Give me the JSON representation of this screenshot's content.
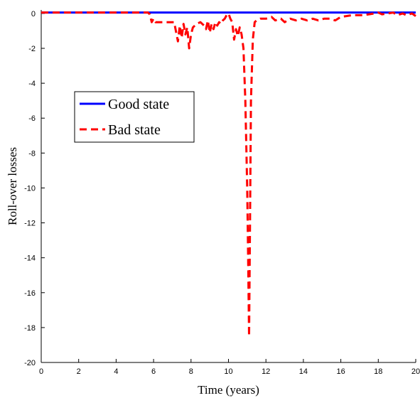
{
  "chart_data": {
    "type": "line",
    "title": "",
    "xlabel": "Time (years)",
    "ylabel": "Roll-over losses",
    "xlim": [
      0,
      20
    ],
    "ylim": [
      -20,
      0.2
    ],
    "xticks": [
      0,
      2,
      4,
      6,
      8,
      10,
      12,
      14,
      16,
      18,
      20
    ],
    "yticks": [
      0,
      -2,
      -4,
      -6,
      -8,
      -10,
      -12,
      -14,
      -16,
      -18,
      -20
    ],
    "grid": false,
    "legend_position": "upper-left",
    "series": [
      {
        "name": "Good state",
        "color": "#0000ff",
        "style": "solid",
        "x": [
          0,
          20
        ],
        "y": [
          0.05,
          0.05
        ]
      },
      {
        "name": "Bad state",
        "color": "#ff0000",
        "style": "dashed",
        "x": [
          0,
          5.7,
          5.8,
          5.9,
          6.0,
          6.1,
          6.3,
          6.6,
          6.9,
          7.1,
          7.3,
          7.4,
          7.5,
          7.6,
          7.7,
          7.8,
          7.9,
          8.0,
          8.1,
          8.3,
          8.5,
          8.7,
          8.8,
          8.9,
          9.0,
          9.1,
          9.2,
          9.3,
          9.4,
          9.5,
          9.6,
          9.7,
          9.8,
          9.9,
          10.0,
          10.1,
          10.2,
          10.3,
          10.4,
          10.5,
          10.6,
          10.7,
          10.8,
          10.9,
          11.0,
          11.05,
          11.1,
          11.15,
          11.2,
          11.3,
          11.4,
          11.5,
          11.7,
          12.0,
          12.3,
          12.5,
          12.8,
          13.0,
          13.3,
          13.6,
          13.9,
          14.2,
          14.5,
          14.8,
          15.1,
          15.4,
          15.7,
          16.0,
          16.3,
          16.6,
          16.9,
          17.2,
          17.5,
          17.8,
          18.0,
          18.2,
          18.5,
          18.8,
          19.0,
          19.3,
          19.5,
          19.8,
          20.0
        ],
        "y": [
          0.05,
          0.05,
          -0.05,
          -0.5,
          -0.3,
          -0.5,
          -0.5,
          -0.5,
          -0.5,
          -0.5,
          -1.6,
          -0.7,
          -1.4,
          -0.6,
          -1.2,
          -0.8,
          -2.0,
          -1.2,
          -0.8,
          -0.6,
          -0.5,
          -0.7,
          -0.9,
          -0.4,
          -1.1,
          -0.6,
          -0.9,
          -0.5,
          -0.7,
          -0.5,
          -0.6,
          -0.4,
          -0.3,
          -0.1,
          0.0,
          -0.3,
          -0.5,
          -1.5,
          -0.9,
          -1.3,
          -0.8,
          -1.2,
          -2.0,
          -5.0,
          -10.0,
          -14.0,
          -18.5,
          -12.0,
          -5.0,
          -1.5,
          -0.5,
          -0.4,
          -0.3,
          -0.3,
          -0.2,
          -0.4,
          -0.3,
          -0.5,
          -0.3,
          -0.4,
          -0.3,
          -0.4,
          -0.3,
          -0.4,
          -0.3,
          -0.3,
          -0.4,
          -0.2,
          -0.15,
          -0.1,
          -0.1,
          -0.1,
          -0.05,
          0.0,
          0.05,
          -0.05,
          0.0,
          0.05,
          -0.1,
          0.0,
          -0.1,
          0.0,
          -0.15
        ]
      }
    ]
  }
}
